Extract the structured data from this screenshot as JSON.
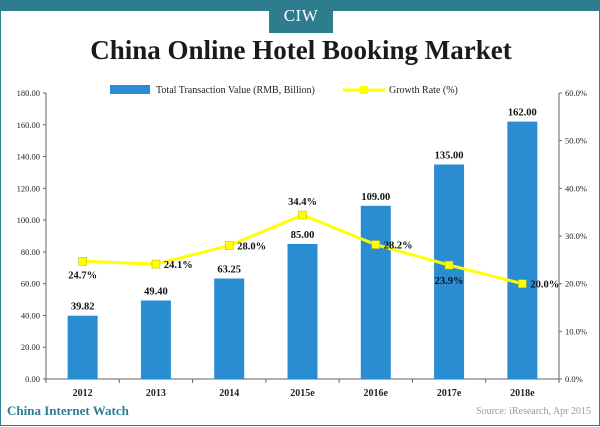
{
  "logo": "CIW",
  "title": "China Online Hotel Booking Market",
  "legend": {
    "bars": "Total Transaction Value (RMB, Billion)",
    "line": "Growth Rate (%)"
  },
  "footer": {
    "org": "China Internet Watch",
    "source": "Source: iResearch, Apr 2015"
  },
  "colors": {
    "bar": "#2a8dd2",
    "line": "#ffff00",
    "accent": "#2e7d8f"
  },
  "chart_data": {
    "type": "bar",
    "categories": [
      "2012",
      "2013",
      "2014",
      "2015e",
      "2016e",
      "2017e",
      "2018e"
    ],
    "series": [
      {
        "name": "Total Transaction Value (RMB, Billion)",
        "type": "bar",
        "axis": "left",
        "values": [
          39.82,
          49.4,
          63.25,
          85.0,
          109.0,
          135.0,
          162.0
        ],
        "labels": [
          "39.82",
          "49.40",
          "63.25",
          "85.00",
          "109.00",
          "135.00",
          "162.00"
        ]
      },
      {
        "name": "Growth Rate (%)",
        "type": "line",
        "axis": "right",
        "values": [
          24.7,
          24.1,
          28.0,
          34.4,
          28.2,
          23.9,
          20.0
        ],
        "labels": [
          "24.7%",
          "24.1%",
          "28.0%",
          "34.4%",
          "28.2%",
          "23.9%",
          "20.0%"
        ]
      }
    ],
    "y_left": {
      "ylim": [
        0,
        180
      ],
      "ticks": [
        "0.00",
        "20.00",
        "40.00",
        "60.00",
        "80.00",
        "100.00",
        "120.00",
        "140.00",
        "160.00",
        "180.00"
      ]
    },
    "y_right": {
      "ylim": [
        0,
        60
      ],
      "ticks": [
        "0.0%",
        "10.0%",
        "20.0%",
        "30.0%",
        "40.0%",
        "50.0%",
        "60.0%"
      ]
    },
    "grid": false,
    "legend_position": "top"
  }
}
